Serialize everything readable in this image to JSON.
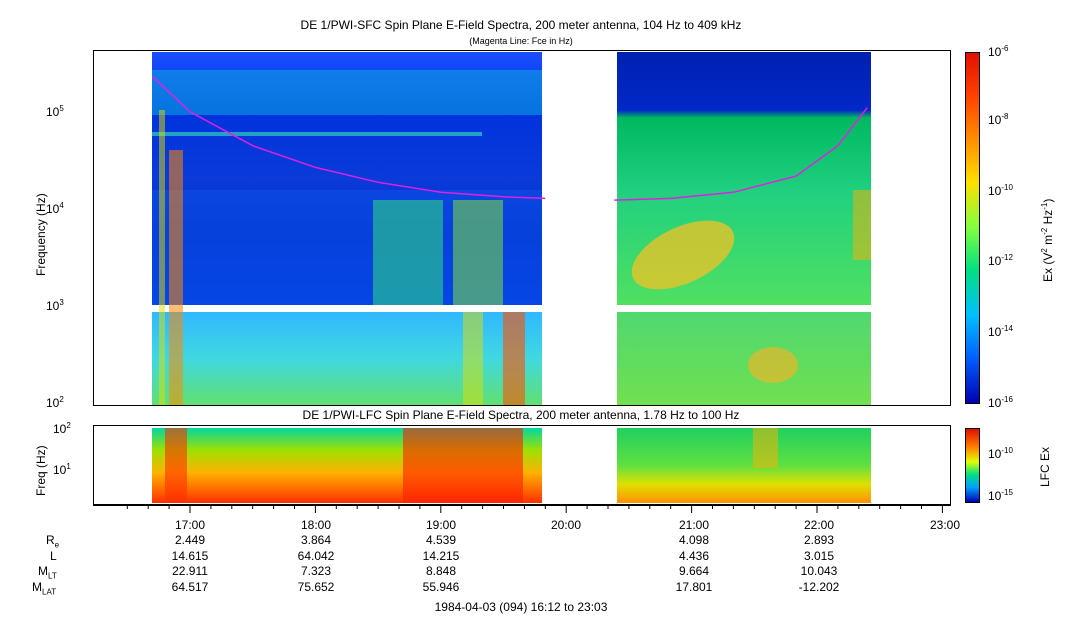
{
  "top_panel": {
    "title": "DE 1/PWI-SFC  Spin Plane E-Field Spectra, 200 meter antenna, 104 Hz to 409 kHz",
    "subtitle": "(Magenta Line: Fce in Hz)",
    "ylabel": "Frequency (Hz)",
    "yticks": [
      {
        "base": "10",
        "exp": "5"
      },
      {
        "base": "10",
        "exp": "4"
      },
      {
        "base": "10",
        "exp": "3"
      },
      {
        "base": "10",
        "exp": "2"
      }
    ],
    "colorbar": {
      "label_main": "Ex (V",
      "label_sup1": "2",
      "label_mid": " m",
      "label_sup2": "-2",
      "label_mid2": " Hz",
      "label_sup3": "-1",
      "label_end": ")",
      "ticks": [
        {
          "base": "10",
          "exp": "-6"
        },
        {
          "base": "10",
          "exp": "-8"
        },
        {
          "base": "10",
          "exp": "-10"
        },
        {
          "base": "10",
          "exp": "-12"
        },
        {
          "base": "10",
          "exp": "-14"
        },
        {
          "base": "10",
          "exp": "-16"
        }
      ]
    }
  },
  "bottom_panel": {
    "title": "DE 1/PWI-LFC  Spin Plane E-Field Spectra, 200 meter antenna, 1.78 Hz to 100 Hz",
    "ylabel": "Freq (Hz)",
    "yticks": [
      {
        "base": "10",
        "exp": "2"
      },
      {
        "base": "10",
        "exp": "1"
      }
    ],
    "colorbar": {
      "label": "LFC Ex",
      "ticks": [
        {
          "base": "10",
          "exp": "-10"
        },
        {
          "base": "10",
          "exp": "-15"
        }
      ]
    }
  },
  "time_axis": {
    "ticks": [
      "17:00",
      "18:00",
      "19:00",
      "20:00",
      "21:00",
      "22:00",
      "23:00"
    ],
    "footer": "1984-04-03 (094) 16:12 to 23:03"
  },
  "ephemeris": {
    "rows": [
      {
        "label": "R",
        "sub": "e",
        "values": [
          "2.449",
          "3.864",
          "4.539",
          "",
          "4.098",
          "2.893"
        ]
      },
      {
        "label": "L",
        "sub": "",
        "values": [
          "14.615",
          "64.042",
          "14.215",
          "",
          "4.436",
          "3.015"
        ]
      },
      {
        "label": "M",
        "sub": "LT",
        "values": [
          "22.911",
          "7.323",
          "8.848",
          "",
          "9.664",
          "10.043"
        ]
      },
      {
        "label": "M",
        "sub": "LAT",
        "values": [
          "64.517",
          "75.652",
          "55.946",
          "",
          "17.801",
          "-12.202"
        ]
      }
    ]
  },
  "chart_data": {
    "type": "heatmap",
    "x_unit": "UT time",
    "x_range": [
      "16:12",
      "23:03"
    ],
    "data_segments_ut": [
      [
        "16:42",
        "19:50"
      ],
      [
        "20:23",
        "22:24"
      ]
    ],
    "top": {
      "y_scale": "log",
      "ylim": [
        100,
        409000
      ],
      "gap_band_hz": [
        1000,
        1040
      ],
      "colorbar_range": [
        1e-16,
        1e-06
      ],
      "fce_line": {
        "color": "#e020e0",
        "segment1": [
          {
            "t": "16:42",
            "f": 230000
          },
          {
            "t": "17:00",
            "f": 100000
          },
          {
            "t": "17:30",
            "f": 45000
          },
          {
            "t": "18:00",
            "f": 27000
          },
          {
            "t": "18:30",
            "f": 19000
          },
          {
            "t": "19:00",
            "f": 15000
          },
          {
            "t": "19:30",
            "f": 13500
          },
          {
            "t": "19:50",
            "f": 13000
          }
        ],
        "segment2": [
          {
            "t": "20:23",
            "f": 12500
          },
          {
            "t": "20:50",
            "f": 13000
          },
          {
            "t": "21:20",
            "f": 15000
          },
          {
            "t": "21:50",
            "f": 22000
          },
          {
            "t": "22:10",
            "f": 45000
          },
          {
            "t": "22:24",
            "f": 110000
          }
        ]
      }
    },
    "bottom": {
      "y_scale": "log",
      "ylim": [
        1.78,
        100
      ],
      "colorbar_range": [
        1e-16,
        1e-08
      ]
    }
  }
}
